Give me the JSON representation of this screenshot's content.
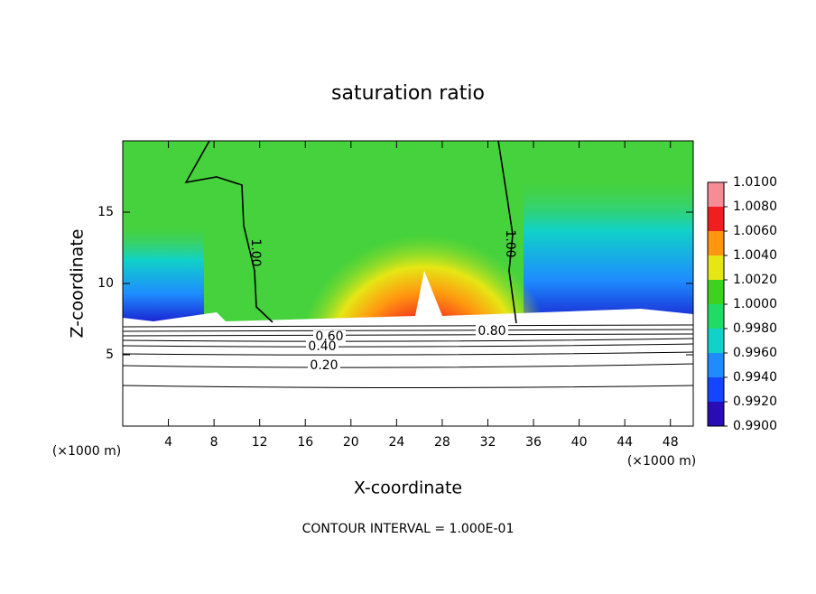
{
  "chart_data": {
    "type": "contour",
    "title": "saturation ratio",
    "xlabel": "X-coordinate",
    "ylabel": "Z-coordinate",
    "x_unit_labels": [
      "(×1000 m)",
      "(×1000 m)"
    ],
    "footer": "CONTOUR INTERVAL = 1.000E-01",
    "xlim": [
      0,
      50
    ],
    "xticks": [
      4,
      8,
      12,
      16,
      20,
      24,
      28,
      32,
      36,
      40,
      44,
      48
    ],
    "ylim": [
      0,
      20
    ],
    "yticks": [
      5,
      10,
      15
    ],
    "contour_labels": [
      {
        "value": 1,
        "label": "1.00"
      },
      {
        "value": 1,
        "label": "1.00"
      },
      {
        "value": 0.6,
        "label": "0.60"
      },
      {
        "value": 0.4,
        "label": "0.40"
      },
      {
        "value": 0.2,
        "label": "0.20"
      },
      {
        "value": 0.8,
        "label": "0.80"
      }
    ],
    "colorbar": {
      "ticks": [
        {
          "value": 0.99,
          "label": "0.9900"
        },
        {
          "value": 0.992,
          "label": "0.9920"
        },
        {
          "value": 0.994,
          "label": "0.9940"
        },
        {
          "value": 0.996,
          "label": "0.9960"
        },
        {
          "value": 0.998,
          "label": "0.9980"
        },
        {
          "value": 1.0,
          "label": "1.0000"
        },
        {
          "value": 1.002,
          "label": "1.0020"
        },
        {
          "value": 1.004,
          "label": "1.0040"
        },
        {
          "value": 1.006,
          "label": "1.0060"
        },
        {
          "value": 1.008,
          "label": "1.0080"
        },
        {
          "value": 1.01,
          "label": "1.0100"
        }
      ],
      "colors": [
        "#2a0cb4",
        "#1446ff",
        "#1e8cff",
        "#10d2c8",
        "#20dc64",
        "#3cd21e",
        "#e6e614",
        "#ff9610",
        "#f01e1e",
        "#f58c96"
      ]
    }
  }
}
